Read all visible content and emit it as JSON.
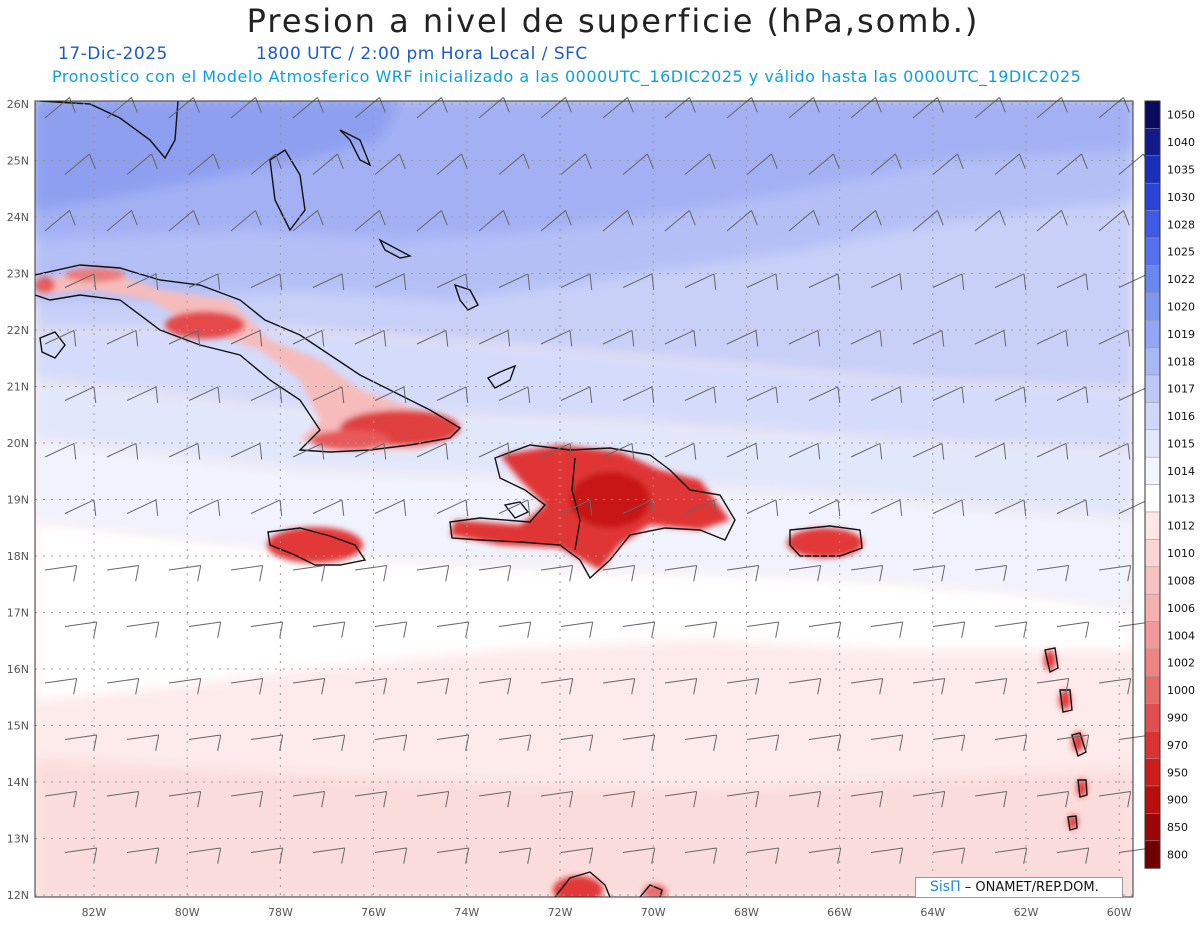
{
  "header": {
    "title": "Presion a nivel de superficie (hPa,somb.)",
    "date": "17-Dic-2025",
    "time_info": "1800 UTC / 2:00 pm Hora Local / SFC",
    "model_info": "Pronostico con el Modelo Atmosferico WRF inicializado a las 0000UTC_16DIC2025 y válido hasta las  0000UTC_19DIC2025"
  },
  "axes": {
    "lon_labels": [
      "82W",
      "80W",
      "78W",
      "76W",
      "74W",
      "72W",
      "70W",
      "68W",
      "66W",
      "64W",
      "62W",
      "60W"
    ],
    "lat_labels": [
      "26N",
      "25N",
      "24N",
      "23N",
      "22N",
      "21N",
      "20N",
      "19N",
      "18N",
      "17N",
      "16N",
      "15N",
      "14N",
      "13N",
      "12N"
    ]
  },
  "colorbar": {
    "levels": [
      "1050",
      "1040",
      "1035",
      "1030",
      "1028",
      "1025",
      "1022",
      "1020",
      "1019",
      "1018",
      "1017",
      "1016",
      "1015",
      "1014",
      "1013",
      "1012",
      "1010",
      "1008",
      "1006",
      "1004",
      "1002",
      "1000",
      "990",
      "970",
      "950",
      "900",
      "850",
      "800"
    ],
    "colors": [
      "#0b0b5c",
      "#121a8c",
      "#1a2fb8",
      "#2a44d6",
      "#3f5be6",
      "#5571ec",
      "#6a86ef",
      "#7f97f0",
      "#93a7f2",
      "#a8b8f5",
      "#bdc8f7",
      "#d0d8fa",
      "#e2e8fc",
      "#f2f5fe",
      "#ffffff",
      "#fde6e6",
      "#fbd4d4",
      "#f8c2c2",
      "#f5b0b0",
      "#f29a9a",
      "#ee8484",
      "#e86b6b",
      "#e04f4f",
      "#d83434",
      "#cc1c1c",
      "#b80d0d",
      "#9a0505",
      "#700000"
    ]
  },
  "credit": {
    "brand": "SisΠ",
    "text": " – ONAMET/REP.DOM."
  }
}
